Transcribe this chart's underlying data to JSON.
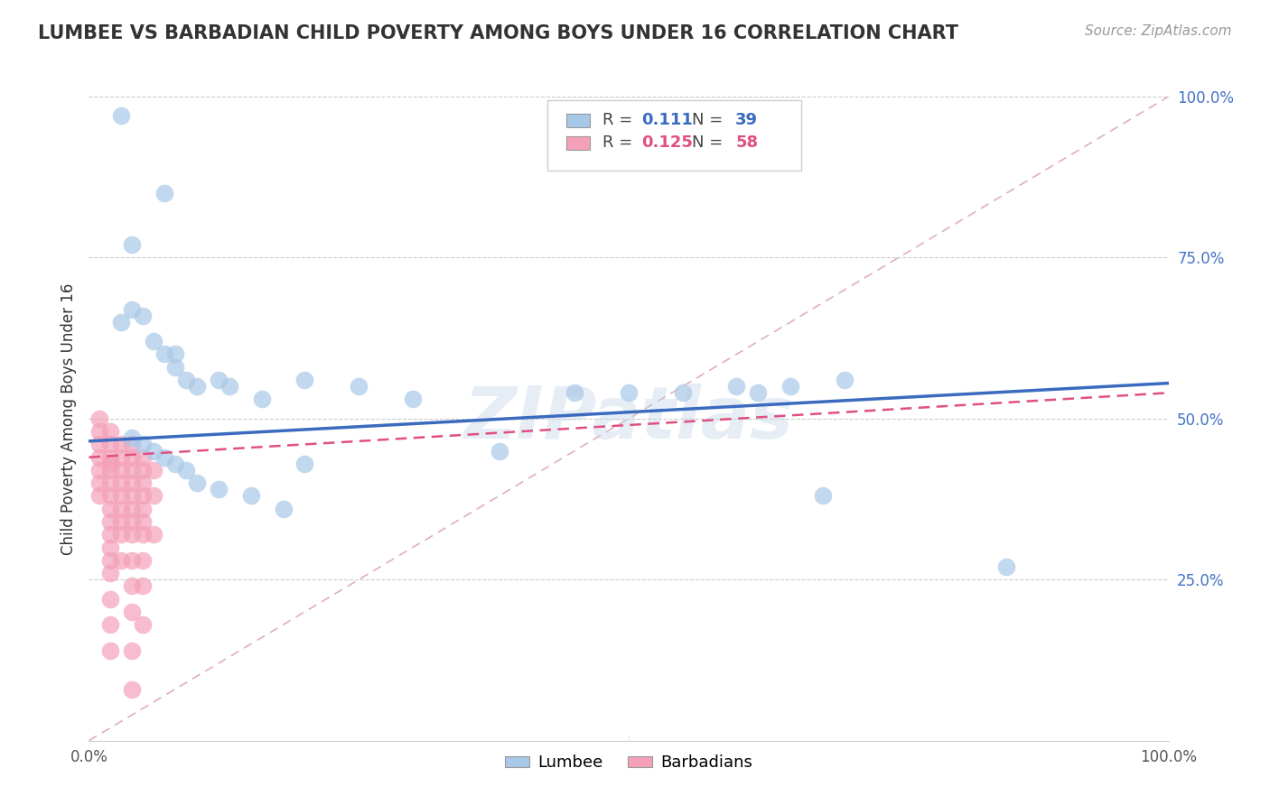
{
  "title": "LUMBEE VS BARBADIAN CHILD POVERTY AMONG BOYS UNDER 16 CORRELATION CHART",
  "source": "Source: ZipAtlas.com",
  "ylabel": "Child Poverty Among Boys Under 16",
  "xlim": [
    0,
    1
  ],
  "ylim": [
    0,
    1
  ],
  "xticks": [
    0.0,
    0.5,
    1.0
  ],
  "xticklabels": [
    "0.0%",
    "",
    "100.0%"
  ],
  "yticks": [
    0.25,
    0.5,
    0.75,
    1.0
  ],
  "yticklabels": [
    "25.0%",
    "50.0%",
    "75.0%",
    "100.0%"
  ],
  "lumbee_R": 0.111,
  "lumbee_N": 39,
  "barbadian_R": 0.125,
  "barbadian_N": 58,
  "lumbee_color": "#a8c8e8",
  "barbadian_color": "#f4a0b8",
  "lumbee_line_color": "#3a6bbf",
  "barbadian_line_color": "#e05080",
  "diagonal_color": "#e0b0b8",
  "watermark": "ZIPatlas",
  "lumbee_line_x0": 0.0,
  "lumbee_line_y0": 0.465,
  "lumbee_line_x1": 1.0,
  "lumbee_line_y1": 0.555,
  "barbadian_line_x0": 0.0,
  "barbadian_line_y0": 0.44,
  "barbadian_line_x1": 1.0,
  "barbadian_line_y1": 0.54,
  "lumbee_x": [
    0.03,
    0.07,
    0.08,
    0.04,
    0.04,
    0.05,
    0.06,
    0.07,
    0.08,
    0.09,
    0.1,
    0.12,
    0.13,
    0.16,
    0.2,
    0.25,
    0.3,
    0.38,
    0.45,
    0.5,
    0.55,
    0.6,
    0.62,
    0.65,
    0.68,
    0.7,
    0.04,
    0.05,
    0.06,
    0.07,
    0.08,
    0.09,
    0.1,
    0.12,
    0.15,
    0.18,
    0.2,
    0.85,
    0.03
  ],
  "lumbee_y": [
    0.97,
    0.85,
    0.6,
    0.77,
    0.67,
    0.66,
    0.62,
    0.6,
    0.58,
    0.56,
    0.55,
    0.56,
    0.55,
    0.53,
    0.56,
    0.55,
    0.53,
    0.45,
    0.54,
    0.54,
    0.54,
    0.55,
    0.54,
    0.55,
    0.38,
    0.56,
    0.47,
    0.46,
    0.45,
    0.44,
    0.43,
    0.42,
    0.4,
    0.39,
    0.38,
    0.36,
    0.43,
    0.27,
    0.65
  ],
  "barbadian_x": [
    0.01,
    0.01,
    0.01,
    0.01,
    0.01,
    0.01,
    0.01,
    0.02,
    0.02,
    0.02,
    0.02,
    0.02,
    0.02,
    0.02,
    0.02,
    0.02,
    0.02,
    0.02,
    0.02,
    0.02,
    0.02,
    0.02,
    0.02,
    0.03,
    0.03,
    0.03,
    0.03,
    0.03,
    0.03,
    0.03,
    0.03,
    0.03,
    0.04,
    0.04,
    0.04,
    0.04,
    0.04,
    0.04,
    0.04,
    0.04,
    0.04,
    0.04,
    0.04,
    0.04,
    0.04,
    0.05,
    0.05,
    0.05,
    0.05,
    0.05,
    0.05,
    0.05,
    0.05,
    0.05,
    0.05,
    0.06,
    0.06,
    0.06
  ],
  "barbadian_y": [
    0.5,
    0.48,
    0.46,
    0.44,
    0.42,
    0.4,
    0.38,
    0.48,
    0.46,
    0.44,
    0.43,
    0.42,
    0.4,
    0.38,
    0.36,
    0.34,
    0.32,
    0.3,
    0.28,
    0.26,
    0.22,
    0.18,
    0.14,
    0.46,
    0.44,
    0.42,
    0.4,
    0.38,
    0.36,
    0.34,
    0.32,
    0.28,
    0.46,
    0.44,
    0.42,
    0.4,
    0.38,
    0.36,
    0.34,
    0.32,
    0.28,
    0.24,
    0.2,
    0.14,
    0.08,
    0.44,
    0.42,
    0.4,
    0.38,
    0.36,
    0.34,
    0.32,
    0.28,
    0.24,
    0.18,
    0.42,
    0.38,
    0.32
  ]
}
